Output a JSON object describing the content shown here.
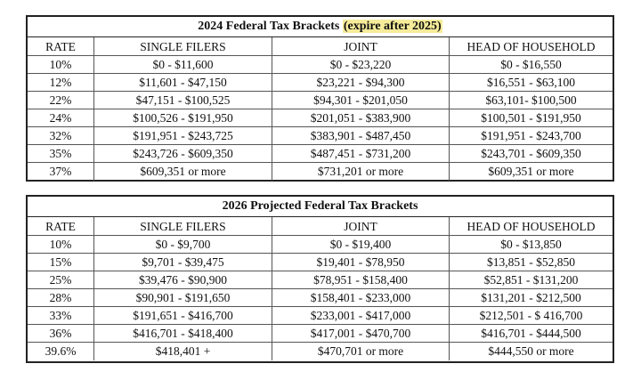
{
  "table1": {
    "title_main": "2024 Federal Tax Brackets",
    "title_highlight": "(expire after 2025)",
    "headers": [
      "RATE",
      "SINGLE FILERS",
      "JOINT",
      "HEAD OF HOUSEHOLD"
    ],
    "rows": [
      [
        "10%",
        "$0 - $11,600",
        "$0 - $23,220",
        "$0 - $16,550"
      ],
      [
        "12%",
        "$11,601 - $47,150",
        "$23,221 - $94,300",
        "$16,551 - $63,100"
      ],
      [
        "22%",
        "$47,151 - $100,525",
        "$94,301 - $201,050",
        "$63,101- $100,500"
      ],
      [
        "24%",
        "$100,526 - $191,950",
        "$201,051 - $383,900",
        "$100,501 - $191,950"
      ],
      [
        "32%",
        "$191,951 - $243,725",
        "$383,901 - $487,450",
        "$191,951 - $243,700"
      ],
      [
        "35%",
        "$243,726 - $609,350",
        "$487,451 - $731,200",
        "$243,701 - $609,350"
      ],
      [
        "37%",
        "$609,351 or more",
        "$731,201 or more",
        "$609,351 or more"
      ]
    ]
  },
  "table2": {
    "title_main": "2026 Projected Federal Tax Brackets",
    "headers": [
      "RATE",
      "SINGLE FILERS",
      "JOINT",
      "HEAD OF HOUSEHOLD"
    ],
    "rows": [
      [
        "10%",
        "$0 - $9,700",
        "$0 - $19,400",
        "$0 - $13,850"
      ],
      [
        "15%",
        "$9,701 - $39,475",
        "$19,401 - $78,950",
        "$13,851 - $52,850"
      ],
      [
        "25%",
        "$39,476 - $90,900",
        "$78,951 - $158,400",
        "$52,851 - $131,200"
      ],
      [
        "28%",
        "$90,901 - $191,650",
        "$158,401 - $233,000",
        "$131,201 - $212,500"
      ],
      [
        "33%",
        "$191,651 - $416,700",
        "$233,001 - $417,000",
        "$212,501 - $ 416,700"
      ],
      [
        "36%",
        "$416,701 - $418,400",
        "$417,001 - $470,700",
        "$416,701 - $444,500"
      ],
      [
        "39.6%",
        "$418,401 +",
        "$470,701 or more",
        "$444,550 or more"
      ]
    ]
  }
}
